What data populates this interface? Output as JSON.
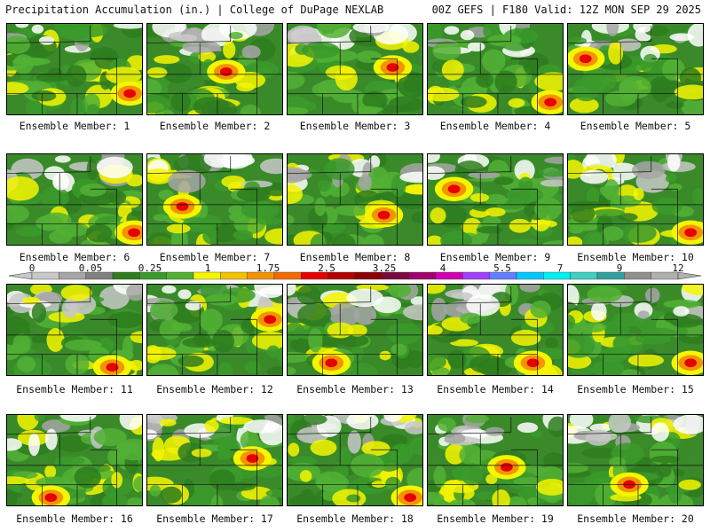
{
  "header": {
    "left": "Precipitation Accumulation (in.) | College of DuPage NEXLAB",
    "right": "00Z GEFS | F180 Valid: 12Z MON SEP 29 2025"
  },
  "colorbar": {
    "tick_labels": [
      "0",
      "0.05",
      "0.25",
      "1",
      "1.75",
      "2.5",
      "3.25",
      "4",
      "5.5",
      "7",
      "9",
      "12"
    ],
    "colors": [
      "#c8c8c8",
      "#a6a6a6",
      "#808080",
      "#2e7d1f",
      "#3b9a2b",
      "#52b035",
      "#f5f500",
      "#f2c200",
      "#f29400",
      "#f26a00",
      "#e60000",
      "#b40000",
      "#8c0000",
      "#7a0a3c",
      "#a0006e",
      "#d000b0",
      "#a040ff",
      "#6080ff",
      "#00c8ff",
      "#00f0f0",
      "#40d0c0",
      "#30a0a0",
      "#909090",
      "#b0b0b0"
    ]
  },
  "members": [
    {
      "label": "Ensemble Member: 1"
    },
    {
      "label": "Ensemble Member: 2"
    },
    {
      "label": "Ensemble Member: 3"
    },
    {
      "label": "Ensemble Member: 4"
    },
    {
      "label": "Ensemble Member: 5"
    },
    {
      "label": "Ensemble Member: 6"
    },
    {
      "label": "Ensemble Member: 7"
    },
    {
      "label": "Ensemble Member: 8"
    },
    {
      "label": "Ensemble Member: 9"
    },
    {
      "label": "Ensemble Member: 10"
    },
    {
      "label": "Ensemble Member: 11"
    },
    {
      "label": "Ensemble Member: 12"
    },
    {
      "label": "Ensemble Member: 13"
    },
    {
      "label": "Ensemble Member: 14"
    },
    {
      "label": "Ensemble Member: 15"
    },
    {
      "label": "Ensemble Member: 16"
    },
    {
      "label": "Ensemble Member: 17"
    },
    {
      "label": "Ensemble Member: 18"
    },
    {
      "label": "Ensemble Member: 19"
    },
    {
      "label": "Ensemble Member: 20"
    }
  ]
}
